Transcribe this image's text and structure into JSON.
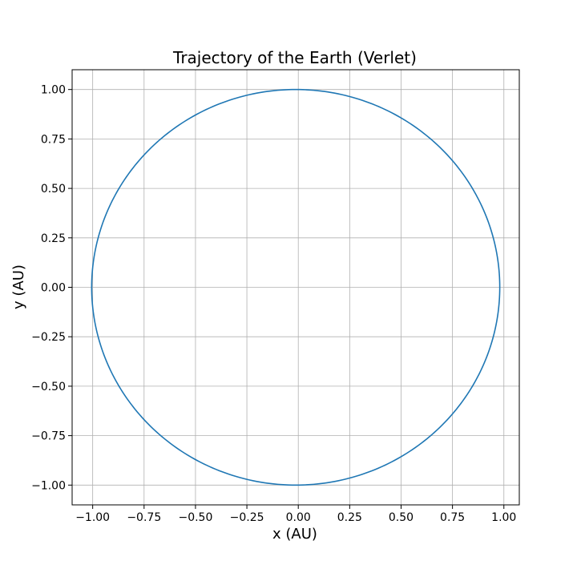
{
  "chart_data": {
    "type": "line",
    "title": "Trajectory of the Earth (Verlet)",
    "xlabel": "x (AU)",
    "ylabel": "y (AU)",
    "xlim": [
      -1.1,
      1.075
    ],
    "ylim": [
      -1.1,
      1.1
    ],
    "xticks": [
      -1.0,
      -0.75,
      -0.5,
      -0.25,
      0.0,
      0.25,
      0.5,
      0.75,
      1.0
    ],
    "xtick_labels": [
      "−1.00",
      "−0.75",
      "−0.50",
      "−0.25",
      "0.00",
      "0.25",
      "0.50",
      "0.75",
      "1.00"
    ],
    "yticks": [
      1.0,
      0.75,
      0.5,
      0.25,
      0.0,
      -0.25,
      -0.5,
      -0.75,
      -1.0
    ],
    "ytick_labels": [
      "1.00",
      "0.75",
      "0.50",
      "0.25",
      "0.00",
      "−0.25",
      "−0.50",
      "−0.75",
      "−1.00"
    ],
    "grid": true,
    "series": [
      {
        "color": "#1f77b4",
        "shape": "ellipse",
        "center": [
          -0.0125,
          0.0
        ],
        "semi_axis_x": 0.9925,
        "semi_axis_y": 1.0
      }
    ]
  }
}
